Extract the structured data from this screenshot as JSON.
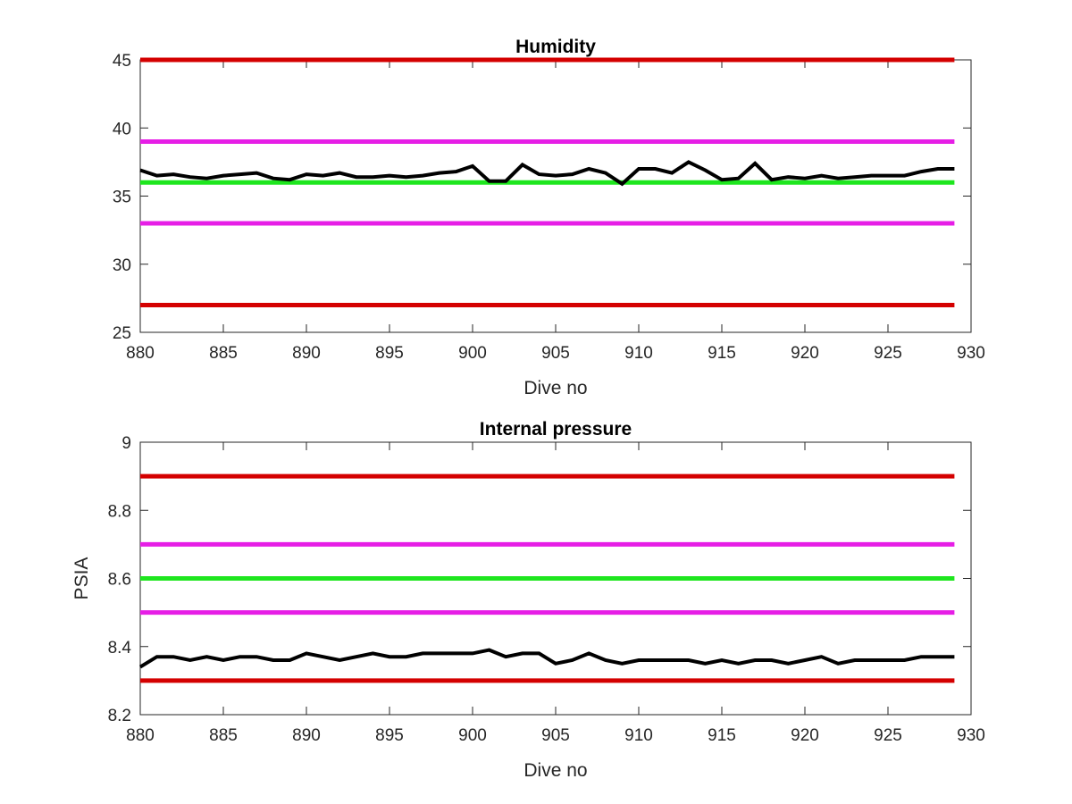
{
  "chart_data": [
    {
      "type": "line",
      "title": "Humidity",
      "xlabel": "Dive no",
      "ylabel": "",
      "xlim": [
        880,
        930
      ],
      "ylim": [
        25,
        45
      ],
      "xticks": [
        880,
        885,
        890,
        895,
        900,
        905,
        910,
        915,
        920,
        925,
        930
      ],
      "yticks": [
        25,
        30,
        35,
        40,
        45
      ],
      "grid": false,
      "reference_lines": [
        {
          "y": 45,
          "color": "#d40000"
        },
        {
          "y": 39,
          "color": "#e61ee6"
        },
        {
          "y": 36,
          "color": "#1ee61e"
        },
        {
          "y": 33,
          "color": "#e61ee6"
        },
        {
          "y": 27,
          "color": "#d40000"
        }
      ],
      "series": [
        {
          "color": "#000000",
          "x": [
            880,
            881,
            882,
            883,
            884,
            885,
            886,
            887,
            888,
            889,
            890,
            891,
            892,
            893,
            894,
            895,
            896,
            897,
            898,
            899,
            900,
            901,
            902,
            903,
            904,
            905,
            906,
            907,
            908,
            909,
            910,
            911,
            912,
            913,
            914,
            915,
            916,
            917,
            918,
            919,
            920,
            921,
            922,
            923,
            924,
            925,
            926,
            927,
            928,
            929
          ],
          "y": [
            36.9,
            36.5,
            36.6,
            36.4,
            36.3,
            36.5,
            36.6,
            36.7,
            36.3,
            36.2,
            36.6,
            36.5,
            36.7,
            36.4,
            36.4,
            36.5,
            36.4,
            36.5,
            36.7,
            36.8,
            37.2,
            36.1,
            36.1,
            37.3,
            36.6,
            36.5,
            36.6,
            37.0,
            36.7,
            35.9,
            37.0,
            37.0,
            36.7,
            37.5,
            36.9,
            36.2,
            36.3,
            37.4,
            36.2,
            36.4,
            36.3,
            36.5,
            36.3,
            36.4,
            36.5,
            36.5,
            36.5,
            36.8,
            37.0,
            37.0
          ]
        }
      ]
    },
    {
      "type": "line",
      "title": "Internal pressure",
      "xlabel": "Dive no",
      "ylabel": "PSIA",
      "xlim": [
        880,
        930
      ],
      "ylim": [
        8.2,
        9
      ],
      "xticks": [
        880,
        885,
        890,
        895,
        900,
        905,
        910,
        915,
        920,
        925,
        930
      ],
      "yticks": [
        8.2,
        8.4,
        8.6,
        8.8,
        9
      ],
      "grid": false,
      "reference_lines": [
        {
          "y": 8.9,
          "color": "#d40000"
        },
        {
          "y": 8.7,
          "color": "#e61ee6"
        },
        {
          "y": 8.6,
          "color": "#1ee61e"
        },
        {
          "y": 8.5,
          "color": "#e61ee6"
        },
        {
          "y": 8.3,
          "color": "#d40000"
        }
      ],
      "series": [
        {
          "color": "#000000",
          "x": [
            880,
            881,
            882,
            883,
            884,
            885,
            886,
            887,
            888,
            889,
            890,
            891,
            892,
            893,
            894,
            895,
            896,
            897,
            898,
            899,
            900,
            901,
            902,
            903,
            904,
            905,
            906,
            907,
            908,
            909,
            910,
            911,
            912,
            913,
            914,
            915,
            916,
            917,
            918,
            919,
            920,
            921,
            922,
            923,
            924,
            925,
            926,
            927,
            928,
            929
          ],
          "y": [
            8.34,
            8.37,
            8.37,
            8.36,
            8.37,
            8.36,
            8.37,
            8.37,
            8.36,
            8.36,
            8.38,
            8.37,
            8.36,
            8.37,
            8.38,
            8.37,
            8.37,
            8.38,
            8.38,
            8.38,
            8.38,
            8.39,
            8.37,
            8.38,
            8.38,
            8.35,
            8.36,
            8.38,
            8.36,
            8.35,
            8.36,
            8.36,
            8.36,
            8.36,
            8.35,
            8.36,
            8.35,
            8.36,
            8.36,
            8.35,
            8.36,
            8.37,
            8.35,
            8.36,
            8.36,
            8.36,
            8.36,
            8.37,
            8.37,
            8.37
          ]
        }
      ]
    }
  ]
}
